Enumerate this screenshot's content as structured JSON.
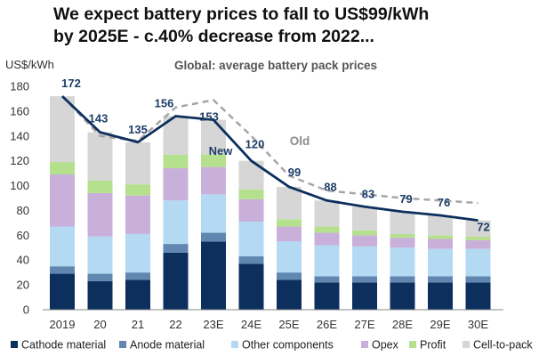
{
  "headline": {
    "line1": "We expect battery prices to fall to US$99/kWh",
    "line2": "by 2025E - c.40% decrease from 2022..."
  },
  "chart_data": {
    "type": "bar",
    "stacked": true,
    "title": "Global: average battery pack prices",
    "ylabel": "US$/kWh",
    "xlabel": "",
    "ylim": [
      0,
      180
    ],
    "yticks": [
      0,
      20,
      40,
      60,
      80,
      100,
      120,
      140,
      160,
      180
    ],
    "grid": false,
    "categories": [
      "2019",
      "20",
      "21",
      "22",
      "23E",
      "24E",
      "25E",
      "26E",
      "27E",
      "28E",
      "29E",
      "30E"
    ],
    "series": [
      {
        "name": "Cathode material",
        "color": "#0d2f5e",
        "values": [
          29,
          23,
          24,
          46,
          55,
          37,
          24,
          22,
          22,
          22,
          22,
          22
        ]
      },
      {
        "name": "Anode material",
        "color": "#5f87b0",
        "values": [
          6,
          6,
          6,
          7,
          7,
          6,
          6,
          5,
          5,
          5,
          5,
          5
        ]
      },
      {
        "name": "Other components",
        "color": "#b3daf2",
        "values": [
          32,
          30,
          31,
          35,
          31,
          28,
          25,
          25,
          24,
          23,
          22,
          22
        ]
      },
      {
        "name": "Opex",
        "color": "#c8b0da",
        "values": [
          42,
          35,
          31,
          26,
          22,
          18,
          12,
          10,
          9,
          8,
          8,
          7
        ]
      },
      {
        "name": "Profit",
        "color": "#b5e08e",
        "values": [
          10,
          10,
          9,
          11,
          10,
          8,
          6,
          5,
          4,
          3,
          3,
          3
        ]
      },
      {
        "name": "Cell-to-pack",
        "color": "#d6d6d6",
        "values": [
          53,
          39,
          34,
          31,
          28,
          23,
          26,
          21,
          19,
          18,
          16,
          13
        ]
      }
    ],
    "lines": [
      {
        "name": "New",
        "style": "solid",
        "color": "#0d2f5e",
        "values": [
          172,
          143,
          135,
          156,
          153,
          120,
          99,
          88,
          83,
          79,
          76,
          72
        ]
      },
      {
        "name": "Old",
        "style": "dashed",
        "color": "#a6a6a6",
        "values": [
          172,
          140,
          136,
          163,
          169,
          140,
          108,
          96,
          93,
          90,
          88,
          86
        ]
      }
    ],
    "total_labels": [
      "172",
      "143",
      "135",
      "156",
      "153",
      "120",
      "99",
      "88",
      "83",
      "79",
      "76",
      "72"
    ],
    "annotations": {
      "new_label": "New",
      "old_label": "Old"
    },
    "legend_position": "bottom"
  }
}
